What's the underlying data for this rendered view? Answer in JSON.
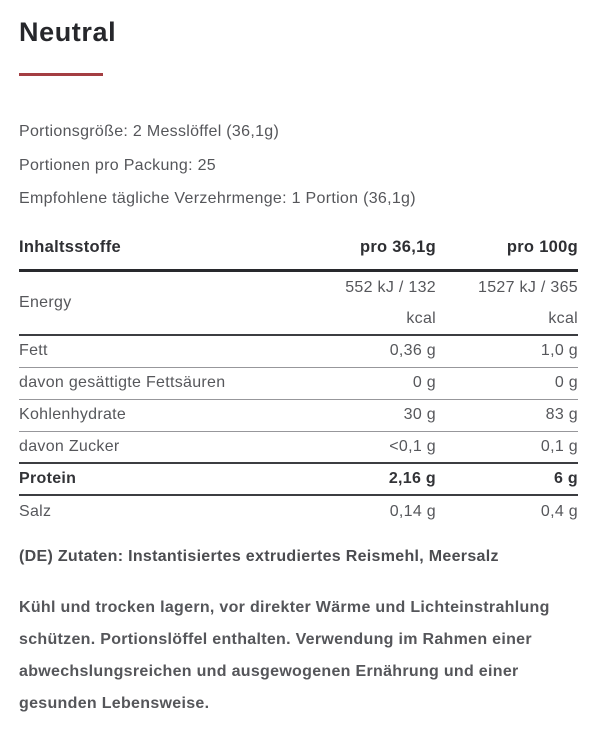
{
  "header": {
    "title": "Neutral",
    "accent_color": "#a43e42"
  },
  "serving_info": {
    "serving_size": "Portionsgröße: 2 Messlöffel (36,1g)",
    "servings_per_pack": "Portionen pro Packung: 25",
    "recommended_daily": "Empfohlene tägliche Verzehrmenge: 1 Portion (36,1g)"
  },
  "nutrition_table": {
    "columns": {
      "label": "Inhaltsstoffe",
      "per_serving": "pro 36,1g",
      "per_100g": "pro 100g"
    },
    "rows": [
      {
        "label": "Energy",
        "per_serving": "552 kJ / 132 kcal",
        "per_100g": "1527 kJ / 365 kcal"
      },
      {
        "label": "Fett",
        "per_serving": "0,36 g",
        "per_100g": "1,0 g"
      },
      {
        "label": "davon gesättigte Fettsäuren",
        "per_serving": "0 g",
        "per_100g": "0 g"
      },
      {
        "label": "Kohlenhydrate",
        "per_serving": "30 g",
        "per_100g": "83 g"
      },
      {
        "label": "davon Zucker",
        "per_serving": "<0,1 g",
        "per_100g": "0,1 g"
      },
      {
        "label": "Protein",
        "per_serving": "2,16 g",
        "per_100g": "6 g"
      },
      {
        "label": "Salz",
        "per_serving": "0,14 g",
        "per_100g": "0,4 g"
      }
    ]
  },
  "ingredients": "(DE) Zutaten: Instantisiertes extrudiertes Reismehl, Meersalz",
  "storage_note": "Kühl und trocken lagern, vor direkter Wärme und Lichteinstrahlung schützen. Portionslöffel enthalten. Verwendung im Rahmen einer abwechslungsreichen und ausgewogenen Ernährung und einer gesunden Lebensweise."
}
